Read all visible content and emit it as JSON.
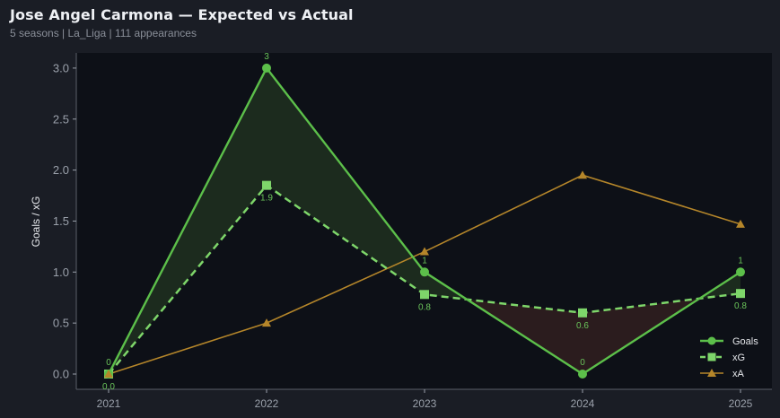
{
  "header": {
    "title": "Jose Angel Carmona — Expected vs Actual",
    "subtitle": "5 seasons | La_Liga | 111 appearances"
  },
  "colors": {
    "background": "#1a1d25",
    "plot_background": "#0d1017",
    "goals": "#5cbf4a",
    "xg": "#7ed66a",
    "xa": "#b5862a",
    "over_fill": "#1c2b1e",
    "under_fill": "#2b1c1e"
  },
  "chart_data": {
    "type": "line",
    "title": "Jose Angel Carmona — Expected vs Actual",
    "subtitle": "5 seasons | La_Liga | 111 appearances",
    "xlabel": "",
    "ylabel": "Goals / xG",
    "categories": [
      "2021",
      "2022",
      "2023",
      "2024",
      "2025"
    ],
    "ylim": [
      -0.15,
      3.15
    ],
    "yticks": [
      "0.0",
      "0.5",
      "1.0",
      "1.5",
      "2.0",
      "2.5",
      "3.0"
    ],
    "grid": false,
    "legend_position": "lower right",
    "series": [
      {
        "name": "Goals",
        "marker": "circle",
        "style": "solid",
        "values": [
          0,
          3,
          1,
          0,
          1
        ],
        "labels": [
          "0",
          "3",
          "1",
          "0",
          "1"
        ]
      },
      {
        "name": "xG",
        "marker": "square",
        "style": "dashed",
        "values": [
          0.0,
          1.85,
          0.78,
          0.6,
          0.79
        ],
        "labels": [
          "0.0",
          "1.9",
          "0.8",
          "0.6",
          "0.8"
        ]
      },
      {
        "name": "xA",
        "marker": "triangle",
        "style": "solid",
        "values": [
          0.0,
          0.5,
          1.2,
          1.95,
          1.47
        ]
      }
    ]
  },
  "legend": {
    "items": [
      "Goals",
      "xG",
      "xA"
    ]
  }
}
